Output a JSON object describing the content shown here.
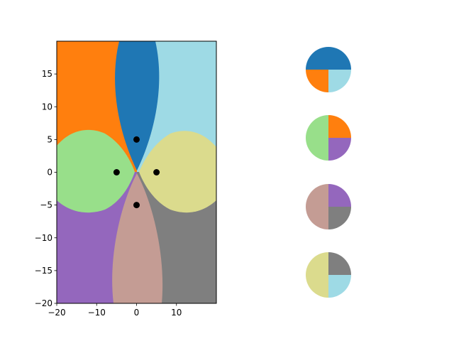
{
  "chart_data": [
    {
      "type": "heatmap",
      "title": "",
      "xlabel": "",
      "ylabel": "",
      "xlim": [
        -20,
        20
      ],
      "ylim": [
        -20,
        20
      ],
      "grid": false,
      "xticks": [
        -20,
        -10,
        0,
        10
      ],
      "xtick_labels": [
        "−20",
        "−10",
        "0",
        "10"
      ],
      "yticks": [
        -20,
        -15,
        -10,
        -5,
        0,
        5,
        10,
        15
      ],
      "ytick_labels": [
        "−20",
        "−15",
        "−10",
        "−5",
        "0",
        "5",
        "10",
        "15"
      ],
      "region_colors": {
        "orange": "#ff7f0e",
        "blue": "#1f77b4",
        "light_blue": "#9edae5",
        "green": "#98df8a",
        "khaki": "#dbdb8d",
        "purple": "#9467bd",
        "grey": "#7f7f7f",
        "rose": "#c49c94"
      },
      "points": [
        {
          "x": 0,
          "y": 5
        },
        {
          "x": -5,
          "y": 0
        },
        {
          "x": 5,
          "y": 0
        },
        {
          "x": 0,
          "y": -5
        }
      ],
      "point_color": "#000000"
    },
    {
      "type": "pie",
      "charts": [
        {
          "slices": [
            {
              "value": 50,
              "color": "#1f77b4"
            },
            {
              "value": 25,
              "color": "#ff7f0e"
            },
            {
              "value": 25,
              "color": "#9edae5"
            }
          ]
        },
        {
          "slices": [
            {
              "value": 25,
              "color": "#ff7f0e"
            },
            {
              "value": 50,
              "color": "#98df8a"
            },
            {
              "value": 25,
              "color": "#9467bd"
            }
          ]
        },
        {
          "slices": [
            {
              "value": 25,
              "color": "#9467bd"
            },
            {
              "value": 50,
              "color": "#c49c94"
            },
            {
              "value": 25,
              "color": "#7f7f7f"
            }
          ]
        },
        {
          "slices": [
            {
              "value": 25,
              "color": "#7f7f7f"
            },
            {
              "value": 50,
              "color": "#dbdb8d"
            },
            {
              "value": 25,
              "color": "#9edae5"
            }
          ]
        }
      ]
    }
  ]
}
